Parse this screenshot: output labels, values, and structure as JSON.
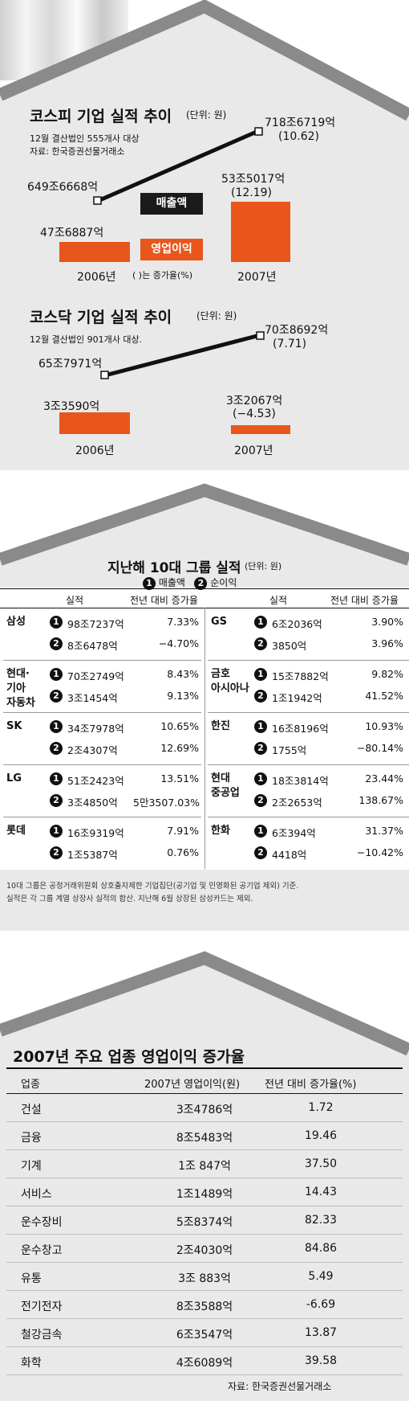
{
  "kospi": {
    "title": "코스피 기업 실적 추이",
    "unit": "(단위: 원)",
    "note1": "12월 결산법인 555개사 대상",
    "note2": "자료: 한국증권선물거래소",
    "sales_label": "매출액",
    "op_label": "영업이익",
    "paren_note": "( )는 증가율(%)",
    "year_2006": "2006년",
    "year_2007": "2007년",
    "sales_2006": "649조6668억",
    "sales_2007": "718조6719억",
    "sales_growth": "(10.62)",
    "op_2006": "47조6887억",
    "op_2007": "53조5017억",
    "op_growth": "(12.19)"
  },
  "kosdaq": {
    "title": "코스닥 기업 실적 추이",
    "unit": "(단위: 원)",
    "note1": "12월 결산법인 901개사 대상.",
    "year_2006": "2006년",
    "year_2007": "2007년",
    "sales_2006": "65조7971억",
    "sales_2007": "70조8692억",
    "sales_growth": "(7.71)",
    "op_2006": "3조3590억",
    "op_2007": "3조2067억",
    "op_growth": "(−4.53)"
  },
  "groups": {
    "title": "지난해 10대 그룹 실적",
    "unit": "(단위: 원)",
    "legend_1": "매출액",
    "legend_2": "순이익",
    "mark_1": "1",
    "mark_2": "2",
    "col_result": "실적",
    "col_growth": "전년 대비 증가율",
    "rows_left": [
      {
        "name": "삼성",
        "v1": "98조7237억",
        "g1": "7.33%",
        "v2": "8조6478억",
        "g2": "−4.70%"
      },
      {
        "name": "현대·\n기아\n자동차",
        "v1": "70조2749억",
        "g1": "8.43%",
        "v2": "3조1454억",
        "g2": "9.13%"
      },
      {
        "name": "SK",
        "v1": "34조7978억",
        "g1": "10.65%",
        "v2": "2조4307억",
        "g2": "12.69%"
      },
      {
        "name": "LG",
        "v1": "51조2423억",
        "g1": "13.51%",
        "v2": "3조4850억",
        "g2": "5만3507.03%"
      },
      {
        "name": "롯데",
        "v1": "16조9319억",
        "g1": "7.91%",
        "v2": "1조5387억",
        "g2": "0.76%"
      }
    ],
    "rows_right": [
      {
        "name": "GS",
        "v1": "6조2036억",
        "g1": "3.90%",
        "v2": "3850억",
        "g2": "3.96%"
      },
      {
        "name": "금호\n아시아나",
        "v1": "15조7882억",
        "g1": "9.82%",
        "v2": "1조1942억",
        "g2": "41.52%"
      },
      {
        "name": "한진",
        "v1": "16조8196억",
        "g1": "10.93%",
        "v2": "1755억",
        "g2": "−80.14%"
      },
      {
        "name": "현대\n중공업",
        "v1": "18조3814억",
        "g1": "23.44%",
        "v2": "2조2653억",
        "g2": "138.67%"
      },
      {
        "name": "한화",
        "v1": "6조394억",
        "g1": "31.37%",
        "v2": "4418억",
        "g2": "−10.42%"
      }
    ],
    "footnote1": "10대 그룹은 공정거래위원회 상호출자제한 기업집단(공기업 및 민영화된 공기업 제외) 기준.",
    "footnote2": "실적은 각 그룹 계열 상장사 실적의 합산. 지난해 6월 상장된 삼성카드는 제외."
  },
  "industry": {
    "title": "2007년 주요 업종 영업이익 증가율",
    "header": [
      "업종",
      "2007년 영업이익(원)",
      "전년 대비 증가율(%)"
    ],
    "rows": [
      [
        "건설",
        "3조4786억",
        "1.72"
      ],
      [
        "금융",
        "8조5483억",
        "19.46"
      ],
      [
        "기계",
        "1조 847억",
        "37.50"
      ],
      [
        "서비스",
        "1조1489억",
        "14.43"
      ],
      [
        "운수장비",
        "5조8374억",
        "82.33"
      ],
      [
        "운수창고",
        "2조4030억",
        "84.86"
      ],
      [
        "유통",
        "3조 883억",
        "5.49"
      ],
      [
        "전기전자",
        "8조3588억",
        "-6.69"
      ],
      [
        "철강금속",
        "6조3547억",
        "13.87"
      ],
      [
        "화학",
        "4조6089억",
        "39.58"
      ]
    ],
    "source": "자료: 한국증권선물거래소"
  },
  "colors": {
    "accent": "#e8561b",
    "panel": "#e9e9e9",
    "roof": "#8a8a8a",
    "label_box": "#1a1a1a"
  },
  "chart_data": [
    {
      "type": "bar",
      "title": "코스피 기업 실적 추이",
      "categories": [
        "2006년",
        "2007년"
      ],
      "series": [
        {
          "name": "매출액",
          "values": [
            6496668,
            7186719
          ],
          "growth": 10.62
        },
        {
          "name": "영업이익",
          "values": [
            476887,
            535017
          ],
          "growth": 12.19
        }
      ]
    },
    {
      "type": "bar",
      "title": "코스닥 기업 실적 추이",
      "categories": [
        "2006년",
        "2007년"
      ],
      "series": [
        {
          "name": "매출액",
          "values": [
            657971,
            708692
          ],
          "growth": 7.71
        },
        {
          "name": "영업이익",
          "values": [
            33590,
            32067
          ],
          "growth": -4.53
        }
      ]
    },
    {
      "type": "table",
      "title": "2007년 주요 업종 영업이익 증가율",
      "categories": [
        "건설",
        "금융",
        "기계",
        "서비스",
        "운수장비",
        "운수창고",
        "유통",
        "전기전자",
        "철강금속",
        "화학"
      ],
      "values": [
        1.72,
        19.46,
        37.5,
        14.43,
        82.33,
        84.86,
        5.49,
        -6.69,
        13.87,
        39.58
      ]
    }
  ]
}
